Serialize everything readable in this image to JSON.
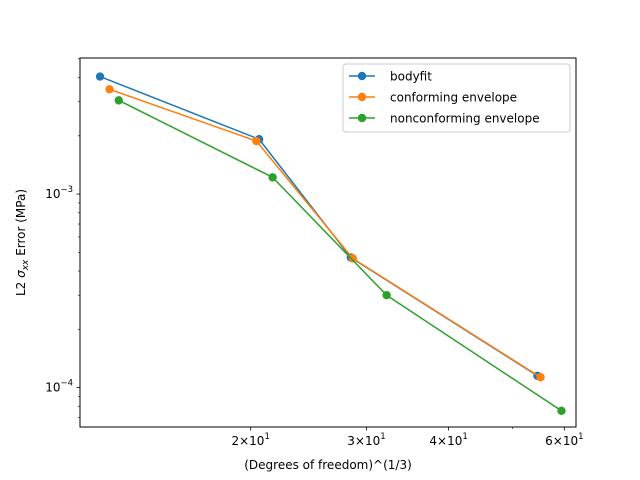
{
  "chart_data": {
    "type": "line",
    "xscale": "log",
    "yscale": "log",
    "xlabel": "(Degrees of freedom)^(1/3)",
    "ylabel_prefix": "L2 ",
    "ylabel_symbol": "σ",
    "ylabel_subscript": "xx",
    "ylabel_suffix": " Error (MPa)",
    "xlim": [
      11.0,
      62.5
    ],
    "ylim": [
      6.25e-05,
      0.00505
    ],
    "grid": false,
    "legend_position": "top-right",
    "x_ticks": [
      {
        "value": 20,
        "base": "2×10",
        "exp": "1"
      },
      {
        "value": 30,
        "base": "3×10",
        "exp": "1"
      },
      {
        "value": 40,
        "base": "4×10",
        "exp": "1"
      },
      {
        "value": 60,
        "base": "6×10",
        "exp": "1"
      }
    ],
    "y_ticks": [
      {
        "value": 0.001,
        "base": "10",
        "exp": "−3"
      },
      {
        "value": 0.0001,
        "base": "10",
        "exp": "−4"
      }
    ],
    "series": [
      {
        "name": "bodyfit",
        "color": "#1f77b4",
        "x": [
          11.8,
          20.6,
          28.4,
          54.6
        ],
        "y": [
          0.00405,
          0.00192,
          0.00047,
          0.000115
        ]
      },
      {
        "name": "conforming envelope",
        "color": "#ff7f0e",
        "x": [
          12.2,
          20.4,
          28.6,
          55.2
        ],
        "y": [
          0.00348,
          0.00188,
          0.000465,
          0.000113
        ]
      },
      {
        "name": "nonconforming envelope",
        "color": "#2ca02c",
        "x": [
          12.6,
          21.6,
          32.2,
          59.4
        ],
        "y": [
          0.00305,
          0.00122,
          0.0003,
          7.58e-05
        ]
      }
    ]
  }
}
